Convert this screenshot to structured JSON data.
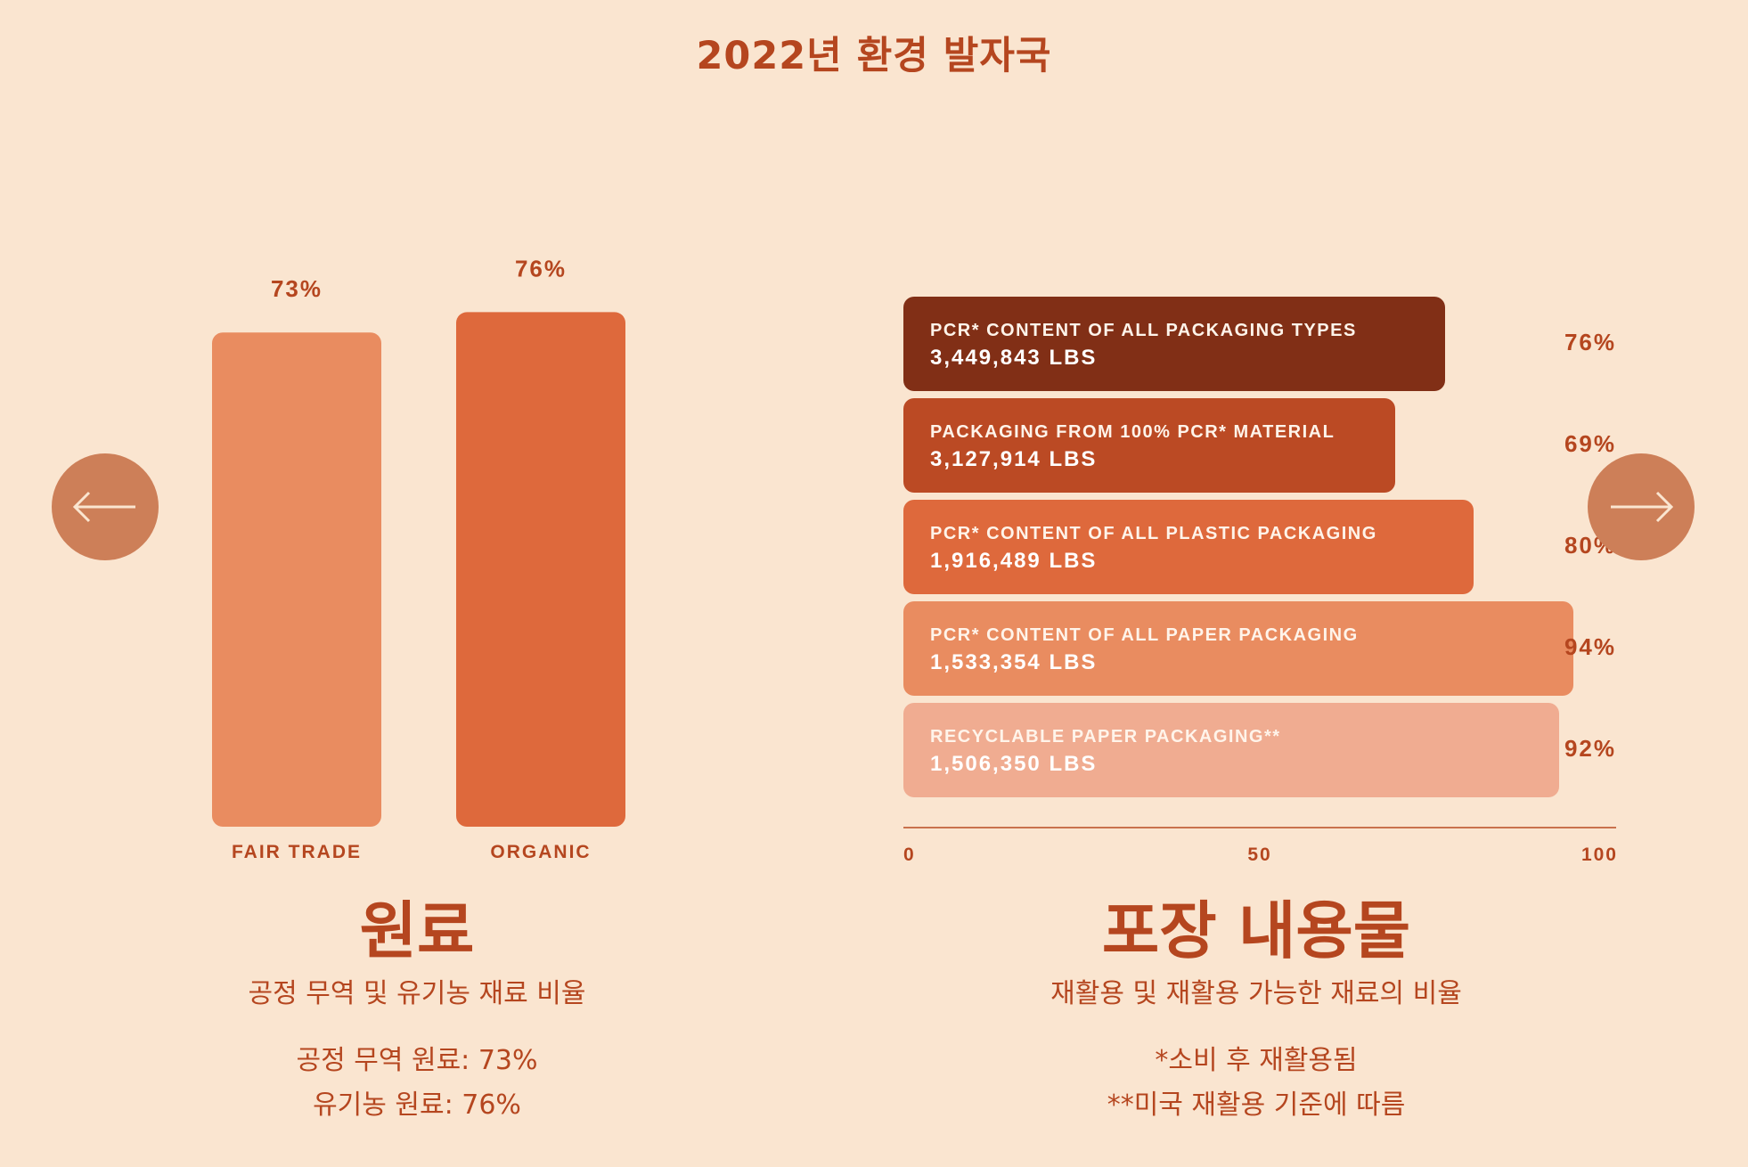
{
  "header": {
    "title": "2022년 환경 발자국"
  },
  "nav": {
    "prev_icon": "arrow-left-icon",
    "next_icon": "arrow-right-icon",
    "button_color": "#cd7f58"
  },
  "colors": {
    "background": "#fae5d0",
    "text": "#b5461f",
    "fair_trade": "#e98c60",
    "organic": "#de693c",
    "pkg_1": "#812f16",
    "pkg_2": "#bb4a24",
    "pkg_3": "#de693c",
    "pkg_4": "#e98c60",
    "pkg_5": "#f0ac91"
  },
  "left_section": {
    "title": "원료",
    "subtitle": "공정 무역 및 유기농 재료 비율",
    "notes": [
      "공정 무역 원료: 73%",
      "유기농 원료: 76%"
    ]
  },
  "right_section": {
    "title": "포장 내용물",
    "subtitle": "재활용 및 재활용 가능한 재료의 비율",
    "notes": [
      "*소비 후 재활용됨",
      "**미국 재활용 기준에 따름"
    ]
  },
  "chart_data": [
    {
      "type": "bar",
      "orientation": "vertical",
      "categories": [
        "FAIR TRADE",
        "ORGANIC"
      ],
      "values": [
        73,
        76
      ],
      "value_labels": [
        "73%",
        "76%"
      ],
      "ylim": [
        0,
        100
      ],
      "colors": [
        "#e98c60",
        "#de693c"
      ],
      "grid": false
    },
    {
      "type": "bar",
      "orientation": "horizontal",
      "categories": [
        "PCR* CONTENT OF ALL PACKAGING TYPES",
        "PACKAGING FROM 100% PCR* MATERIAL",
        "PCR* CONTENT OF ALL PLASTIC PACKAGING",
        "PCR* CONTENT OF ALL PAPER PACKAGING",
        "RECYCLABLE PAPER PACKAGING**"
      ],
      "values": [
        76,
        69,
        80,
        94,
        92
      ],
      "value_labels": [
        "76%",
        "69%",
        "80%",
        "94%",
        "92%"
      ],
      "weights": [
        "3,449,843 LBS",
        "3,127,914 LBS",
        "1,916,489 LBS",
        "1,533,354 LBS",
        "1,506,350 LBS"
      ],
      "xlim": [
        0,
        100
      ],
      "xticks": [
        "0",
        "50",
        "100"
      ],
      "colors": [
        "#812f16",
        "#bb4a24",
        "#de693c",
        "#e98c60",
        "#f0ac91"
      ],
      "grid": false
    }
  ]
}
